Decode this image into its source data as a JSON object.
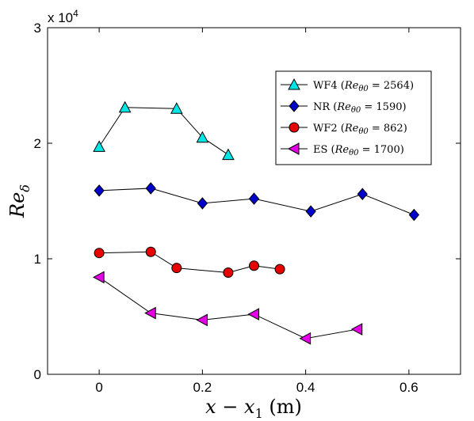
{
  "chart_data": {
    "type": "line",
    "xlabel": "x − x₁ (m)",
    "ylabel": "Re_δ",
    "y_multiplier": "x 10^4",
    "xlim": [
      -0.1,
      0.7
    ],
    "ylim": [
      0,
      30000
    ],
    "x_ticks": [
      0,
      0.2,
      0.4,
      0.6
    ],
    "y_ticks": [
      0,
      10000,
      20000,
      30000
    ],
    "x_tick_labels": [
      "0",
      "0.2",
      "0.4",
      "0.6"
    ],
    "y_tick_labels": [
      "0",
      "1",
      "2",
      "3"
    ],
    "grid": false,
    "legend_position": "top-right",
    "series": [
      {
        "name": "WF4 (Re_θ0 = 2564)",
        "marker": "triangle-up",
        "color": "#00e5e5",
        "x": [
          0,
          0.05,
          0.15,
          0.2,
          0.25
        ],
        "y": [
          19700,
          23100,
          23000,
          20500,
          19000
        ]
      },
      {
        "name": "NR (Re_θ0 = 1590)",
        "marker": "diamond",
        "color": "#0000cc",
        "x": [
          0,
          0.1,
          0.2,
          0.3,
          0.41,
          0.51,
          0.61
        ],
        "y": [
          15900,
          16100,
          14800,
          15200,
          14100,
          15600,
          13800
        ]
      },
      {
        "name": "WF2 (Re_θ0 = 862)",
        "marker": "circle",
        "color": "#e60000",
        "x": [
          0,
          0.1,
          0.15,
          0.25,
          0.3,
          0.35
        ],
        "y": [
          10500,
          10600,
          9200,
          8800,
          9400,
          9100
        ]
      },
      {
        "name": "ES (Re_θ0 = 1700)",
        "marker": "triangle-left",
        "color": "#e600e6",
        "x": [
          0,
          0.1,
          0.2,
          0.3,
          0.4,
          0.5
        ],
        "y": [
          8400,
          5300,
          4700,
          5200,
          3100,
          3900
        ]
      }
    ],
    "legend": [
      {
        "prefix": "WF4",
        "re": "Re",
        "sub": "θ0",
        "value": "= 2564)"
      },
      {
        "prefix": "NR",
        "re": "Re",
        "sub": "θ0",
        "value": "= 1590)"
      },
      {
        "prefix": "WF2",
        "re": "Re",
        "sub": "θ0",
        "value": "= 862)"
      },
      {
        "prefix": "ES",
        "re": "Re",
        "sub": "θ0",
        "value": "= 1700)"
      }
    ]
  }
}
